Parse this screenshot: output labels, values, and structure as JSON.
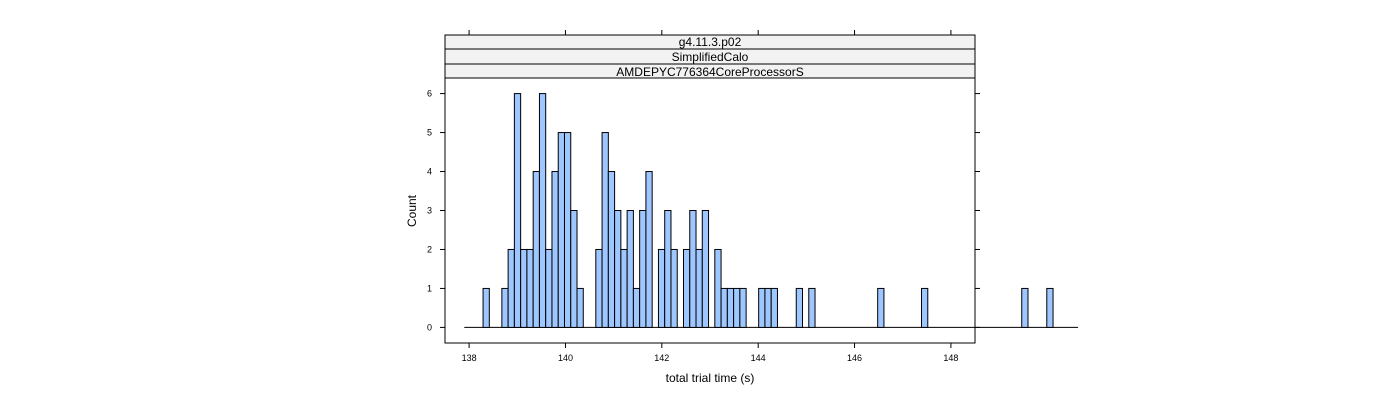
{
  "chart_data": {
    "type": "bar",
    "strips": [
      "g4.11.3.p02",
      "SimplifiedCalo",
      "AMDEPYC776364CoreProcessorS"
    ],
    "xlabel": "total trial time (s)",
    "ylabel": "Count",
    "xlim": [
      137.5,
      148.5
    ],
    "ylim": [
      -0.4,
      6.4
    ],
    "xticks": [
      138,
      140,
      142,
      144,
      146,
      148
    ],
    "yticks": [
      0,
      1,
      2,
      3,
      4,
      5,
      6
    ],
    "bin_start": 137.9,
    "bin_width": 0.13,
    "values": [
      0,
      0,
      0,
      1,
      0,
      0,
      1,
      2,
      6,
      2,
      2,
      4,
      6,
      2,
      4,
      5,
      5,
      3,
      1,
      0,
      0,
      2,
      5,
      4,
      3,
      2,
      3,
      1,
      3,
      4,
      0,
      2,
      3,
      2,
      0,
      2,
      3,
      2,
      3,
      0,
      2,
      1,
      1,
      1,
      1,
      0,
      0,
      1,
      1,
      1,
      0,
      0,
      0,
      1,
      0,
      1,
      0,
      0,
      0,
      0,
      0,
      0,
      0,
      0,
      0,
      0,
      1,
      0,
      0,
      0,
      0,
      0,
      0,
      1,
      0,
      0,
      0,
      0,
      0,
      0,
      0,
      0,
      0,
      0,
      0,
      0,
      0,
      0,
      0,
      1,
      0,
      0,
      0,
      1,
      0,
      0,
      0,
      0
    ]
  }
}
